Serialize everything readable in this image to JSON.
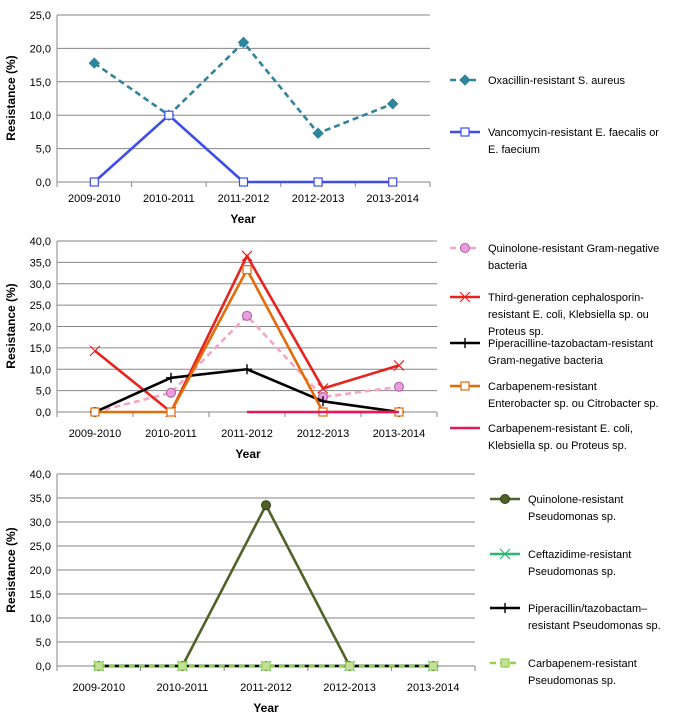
{
  "chart_data": [
    {
      "type": "line",
      "title": "",
      "xlabel": "Year",
      "ylabel": "Resistance (%)",
      "categories": [
        "2009-2010",
        "2010-2011",
        "2011-2012",
        "2012-2013",
        "2013-2014"
      ],
      "ylim": [
        0,
        25
      ],
      "yticks": [
        "0,0",
        "5,0",
        "10,0",
        "15,0",
        "20,0",
        "25,0"
      ],
      "grid": true,
      "legend_position": "right",
      "series": [
        {
          "name": "Oxacillin-resistant S. aureus",
          "legend_lines": [
            "Oxacillin-resistant S. aureus"
          ],
          "values": [
            17.8,
            10.0,
            20.9,
            7.3,
            11.7
          ],
          "color": "#31849b",
          "dash": "6,4",
          "marker": "diamond",
          "fill": "#31849b"
        },
        {
          "name": "Vancomycin-resistant E. faecalis or E. faecium",
          "legend_lines": [
            "Vancomycin-resistant E. faecalis or",
            "E. faecium"
          ],
          "values": [
            0,
            10.0,
            0,
            0,
            0
          ],
          "color": "#3d4ee8",
          "dash": "",
          "marker": "square",
          "fill": "#ffffff"
        }
      ]
    },
    {
      "type": "line",
      "title": "",
      "xlabel": "Year",
      "ylabel": "Resistance (%)",
      "categories": [
        "2009-2010",
        "2010-2011",
        "2011-2012",
        "2012-2013",
        "2013-2014"
      ],
      "ylim": [
        0,
        40
      ],
      "yticks": [
        "0,0",
        "5,0",
        "10,0",
        "15,0",
        "20,0",
        "25,0",
        "30,0",
        "35,0",
        "40,0"
      ],
      "grid": true,
      "legend_position": "right",
      "series": [
        {
          "name": "Quinolone-resistant Gram-negative bacteria",
          "legend_lines": [
            "Quinolone-resistant Gram-negative",
            "bacteria"
          ],
          "values": [
            0,
            4.5,
            22.5,
            3.5,
            5.9
          ],
          "color": "#f4a6c4",
          "dash": "6,4",
          "marker": "circle",
          "fill": "#e6a0e0"
        },
        {
          "name": "Third-generation cephalosporin-resistant E. coli, Klebsiella sp. ou Proteus sp.",
          "legend_lines": [
            "Third-generation cephalosporin-",
            "resistant E. coli, Klebsiella sp. ou",
            "Proteus sp."
          ],
          "values": [
            14.3,
            0,
            36.5,
            5.5,
            10.9
          ],
          "color": "#e8231f",
          "dash": "",
          "marker": "x",
          "fill": "none"
        },
        {
          "name": "Piperacilline-tazobactam-resistant Gram-negative bacteria",
          "legend_lines": [
            "Piperacilline-tazobactam-resistant",
            "Gram-negative bacteria"
          ],
          "values": [
            0,
            8.0,
            10.0,
            2.5,
            0
          ],
          "color": "#000000",
          "dash": "",
          "marker": "plus",
          "fill": "none"
        },
        {
          "name": "Carbapenem-resistant Enterobacter sp. ou Citrobacter sp.",
          "legend_lines": [
            "Carbapenem-resistant",
            "Enterobacter sp. ou Citrobacter sp."
          ],
          "values": [
            0,
            0,
            33.3,
            0,
            0
          ],
          "color": "#e36c09",
          "dash": "",
          "marker": "square",
          "fill": "#ffffff"
        },
        {
          "name": "Carbapenem-resistant E. coli, Klebsiella sp. ou Proteus sp.",
          "legend_lines": [
            "Carbapenem-resistant E. coli,",
            "Klebsiella sp. ou Proteus sp."
          ],
          "values": [
            null,
            null,
            0,
            0,
            0
          ],
          "color": "#e8175d",
          "dash": "",
          "marker": "none",
          "fill": "none"
        }
      ]
    },
    {
      "type": "line",
      "title": "",
      "xlabel": "Year",
      "ylabel": "Resistance (%)",
      "categories": [
        "2009-2010",
        "2010-2011",
        "2011-2012",
        "2012-2013",
        "2013-2014"
      ],
      "ylim": [
        0,
        40
      ],
      "yticks": [
        "0,0",
        "5,0",
        "10,0",
        "15,0",
        "20,0",
        "25,0",
        "30,0",
        "35,0",
        "40,0"
      ],
      "grid": true,
      "legend_position": "right",
      "series": [
        {
          "name": "Quinolone-resistant Pseudomonas sp.",
          "legend_lines": [
            "Quinolone-resistant",
            "Pseudomonas sp."
          ],
          "values": [
            0,
            0,
            33.5,
            0,
            0
          ],
          "color": "#4f6228",
          "dash": "",
          "marker": "circle",
          "fill": "#4f6228"
        },
        {
          "name": "Ceftazidime-resistant Pseudomonas sp.",
          "legend_lines": [
            "Ceftazidime-resistant",
            "Pseudomonas sp."
          ],
          "values": [
            0,
            0,
            0,
            0,
            0
          ],
          "color": "#2bb673",
          "dash": "",
          "marker": "x",
          "fill": "none"
        },
        {
          "name": "Piperacillin/tazobactam–resistant Pseudomonas sp.",
          "legend_lines": [
            "Piperacillin/tazobactam–",
            "resistant Pseudomonas sp."
          ],
          "values": [
            0,
            0,
            0,
            0,
            0
          ],
          "color": "#000000",
          "dash": "",
          "marker": "plus",
          "fill": "none"
        },
        {
          "name": "Carbapenem-resistant Pseudomonas sp.",
          "legend_lines": [
            "Carbapenem-resistant",
            "Pseudomonas sp."
          ],
          "values": [
            0,
            0,
            0,
            0,
            0
          ],
          "color": "#92d050",
          "dash": "6,4",
          "marker": "square",
          "fill": "#c4e09a"
        }
      ]
    }
  ]
}
